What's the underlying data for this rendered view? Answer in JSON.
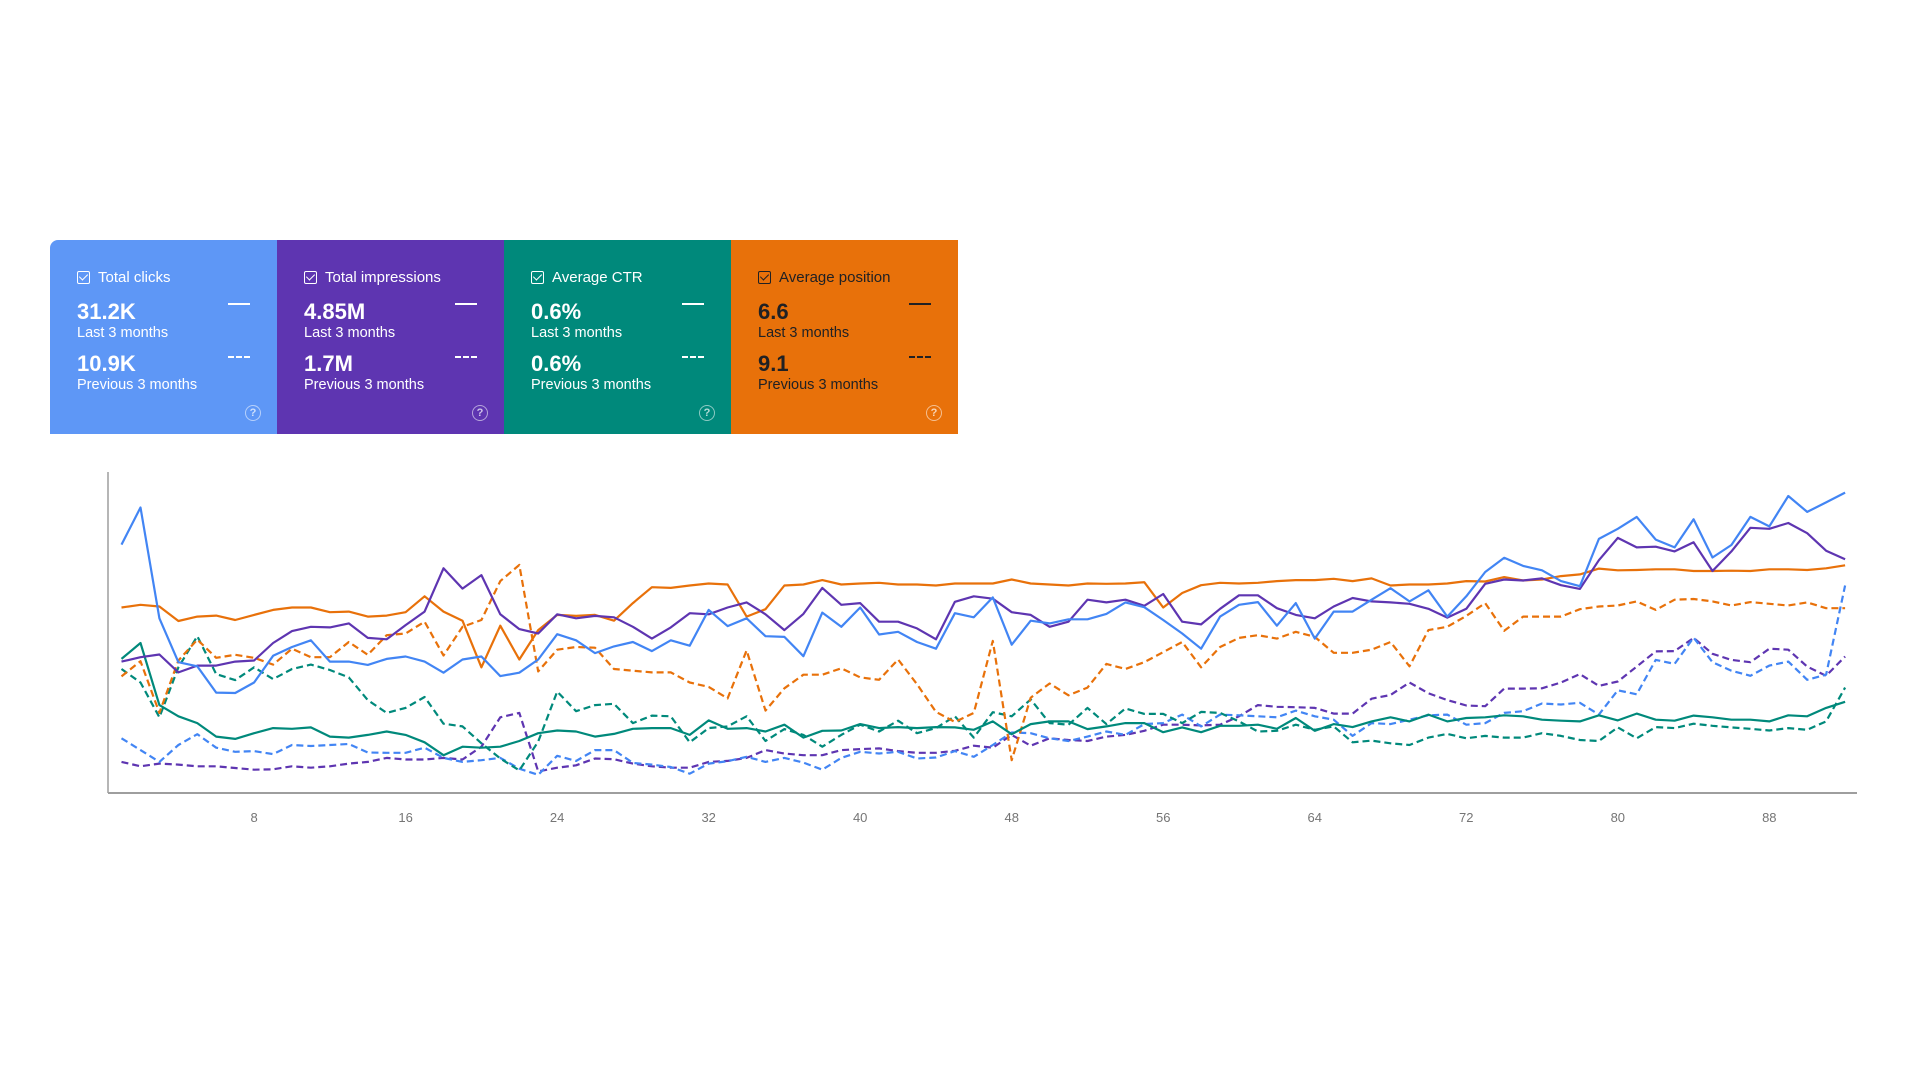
{
  "cards": [
    {
      "title": "Total clicks",
      "current_value": "31.2K",
      "current_label": "Last 3 months",
      "previous_value": "10.9K",
      "previous_label": "Previous 3 months",
      "color": "#5e97f6",
      "checked": true,
      "icon": "help-icon"
    },
    {
      "title": "Total impressions",
      "current_value": "4.85M",
      "current_label": "Last 3 months",
      "previous_value": "1.7M",
      "previous_label": "Previous 3 months",
      "color": "#5e35b1",
      "checked": true,
      "icon": "help-icon"
    },
    {
      "title": "Average CTR",
      "current_value": "0.6%",
      "current_label": "Last 3 months",
      "previous_value": "0.6%",
      "previous_label": "Previous 3 months",
      "color": "#00897b",
      "checked": true,
      "icon": "help-icon"
    },
    {
      "title": "Average position",
      "current_value": "6.6",
      "current_label": "Last 3 months",
      "previous_value": "9.1",
      "previous_label": "Previous 3 months",
      "color": "#e8710a",
      "checked": true,
      "icon": "help-icon"
    }
  ],
  "help_glyph": "?",
  "chart_data": {
    "type": "line",
    "xlim": [
      0,
      93
    ],
    "ylim": [
      0,
      95
    ],
    "y_axis_labels": "none",
    "grid": false,
    "legend": "none",
    "x_ticks": [
      "8",
      "16",
      "24",
      "32",
      "40",
      "48",
      "56",
      "64",
      "72",
      "80",
      "88"
    ],
    "x_tick_values": [
      8,
      16,
      24,
      32,
      40,
      48,
      56,
      64,
      72,
      80,
      88
    ],
    "x_start": 1,
    "series": [
      {
        "metric": "clicks",
        "period": "current",
        "color": "#4285f4",
        "dash": false,
        "values": [
          73.5,
          84.5,
          51.7,
          38.7,
          37.5,
          29.7,
          29.6,
          32.7,
          40.6,
          43.2,
          45.2,
          38.9,
          38.9,
          37.9,
          39.7,
          40.4,
          38.9,
          35.6,
          39.5,
          40.4,
          34.6,
          35.6,
          39.5,
          47,
          45.2,
          41.4,
          43.4,
          44.7,
          42,
          45.2,
          43.6,
          54.2,
          49.4,
          51.7,
          46.4,
          46.2,
          40.5,
          53.4,
          49.2,
          54.9,
          46.9,
          47.7,
          44.7,
          42.7,
          53.2,
          52,
          57.9,
          43.9,
          51,
          50.2,
          51.4,
          51.4,
          53,
          56.4,
          55,
          51.2,
          47.2,
          42.7,
          52.2,
          55.7,
          56.5,
          49.5,
          56.2,
          45.7,
          53.7,
          53.7,
          57.2,
          60.6,
          56.7,
          60,
          52.2,
          58.2,
          65.4,
          69.6,
          67.2,
          65.9,
          62.7,
          61.2,
          75.2,
          78.2,
          81.7,
          75,
          72.7,
          81,
          69.7,
          73.4,
          81.7,
          78.9,
          87.9,
          83.2,
          86,
          88.9
        ]
      },
      {
        "metric": "impressions",
        "period": "current",
        "color": "#5e35b1",
        "dash": false,
        "values": [
          38.9,
          40.2,
          41,
          35.7,
          37.7,
          37.7,
          38.9,
          39.2,
          44.4,
          47.9,
          49.2,
          49,
          50.2,
          45.9,
          45.5,
          49.7,
          53.7,
          66.5,
          60.5,
          64.5,
          52.9,
          48.5,
          47.2,
          52.9,
          51.7,
          52.4,
          52,
          49.2,
          45.7,
          49,
          53.2,
          52.9,
          54.9,
          56.4,
          52.9,
          48.2,
          53,
          60.7,
          55.7,
          56.2,
          50.7,
          50.7,
          48.7,
          45.5,
          56.6,
          58.2,
          57.5,
          53.5,
          52.7,
          49.2,
          50.7,
          57.2,
          56.4,
          57.2,
          55.4,
          58.9,
          50.7,
          49.9,
          54.5,
          58.5,
          58.5,
          54.7,
          52.7,
          51.7,
          55.2,
          57.7,
          56.7,
          56.4,
          56,
          54.5,
          51.9,
          54.5,
          61.9,
          63.2,
          62.9,
          63.5,
          61.5,
          60.4,
          68.9,
          75.5,
          72.7,
          72.9,
          71.5,
          74.2,
          65.7,
          71.5,
          78.5,
          78.2,
          79.9,
          76.9,
          71.7,
          69.2
        ]
      },
      {
        "metric": "position",
        "period": "current",
        "color": "#e8710a",
        "dash": false,
        "values": [
          54.9,
          55.7,
          55.2,
          50.9,
          52.2,
          52.5,
          51.2,
          52.7,
          54.2,
          54.9,
          54.9,
          53.5,
          53.7,
          52.2,
          52.5,
          53.5,
          58.2,
          53.7,
          51,
          37.2,
          49.5,
          39.5,
          48.2,
          52.7,
          52.4,
          52.7,
          51,
          56.2,
          60.9,
          60.7,
          61.4,
          62,
          61.7,
          52.2,
          54.4,
          61.4,
          61.7,
          63,
          61.7,
          62,
          62.2,
          61.7,
          61.7,
          61.4,
          62,
          62,
          62,
          63.2,
          62,
          61.7,
          61.4,
          62,
          61.9,
          62,
          62.4,
          54.9,
          59.2,
          61.5,
          62.2,
          62,
          62.2,
          62.7,
          63,
          63,
          63.4,
          62.7,
          63.5,
          61.4,
          61.7,
          61.7,
          62,
          62.7,
          62.6,
          63.9,
          62.9,
          63.2,
          64.2,
          64.7,
          66.4,
          65.9,
          66,
          66.2,
          66.2,
          65.7,
          65.7,
          65.8,
          65.7,
          66.2,
          66.2,
          66,
          66.5,
          67.4
        ]
      },
      {
        "metric": "ctr",
        "period": "current",
        "color": "#00897b",
        "dash": false,
        "values": [
          39.7,
          44.4,
          26,
          22.7,
          20.7,
          16.7,
          16,
          17.7,
          19.2,
          19,
          19.4,
          16.7,
          16.4,
          17.2,
          18.2,
          17.2,
          15,
          11.2,
          13.7,
          13.4,
          13.7,
          15.4,
          17.7,
          18.5,
          18.2,
          16.7,
          17.5,
          19,
          19.2,
          19.2,
          17.2,
          21.5,
          19,
          19.2,
          18.2,
          20.2,
          16.4,
          18.4,
          18.5,
          20.4,
          19.2,
          19.5,
          19.2,
          19.5,
          19.4,
          18.7,
          21.2,
          17.4,
          20.4,
          21.2,
          21.2,
          18.9,
          19.7,
          20.7,
          20.7,
          18,
          19.4,
          18,
          19.9,
          19.9,
          20.2,
          19,
          22.2,
          18.4,
          20.4,
          19.5,
          21.2,
          22.4,
          21.2,
          23.2,
          21.2,
          22.2,
          22.4,
          23,
          22.7,
          21.7,
          21.4,
          21.2,
          23,
          21.5,
          23.5,
          21.7,
          21.4,
          22.9,
          22.4,
          21.7,
          21.7,
          21.2,
          23,
          22.7,
          25.2,
          27
        ]
      },
      {
        "metric": "position",
        "period": "previous",
        "color": "#e8710a",
        "dash": true,
        "values": [
          34.5,
          39,
          23.7,
          39.2,
          45.4,
          40,
          40.9,
          40,
          38,
          42.7,
          40.2,
          40.2,
          44.7,
          40.9,
          46.7,
          47.2,
          50.7,
          40.7,
          49.2,
          51.2,
          62.7,
          67.5,
          36,
          42.4,
          43.2,
          43,
          36.7,
          36.2,
          35.7,
          35.7,
          32.7,
          31.4,
          28,
          42.2,
          24.4,
          31,
          35,
          35,
          36.9,
          34.2,
          33.5,
          39.5,
          32.2,
          24,
          21,
          23.7,
          45,
          9.7,
          28.2,
          32.4,
          28.9,
          31.2,
          38.2,
          36.7,
          38.7,
          41.7,
          44.7,
          37.2,
          43.2,
          45.9,
          46.7,
          45.7,
          47.7,
          46.2,
          41.5,
          41.5,
          42.4,
          44.7,
          37.5,
          48.2,
          49.2,
          52.4,
          56.2,
          48,
          52.2,
          52.2,
          52.2,
          54.4,
          55.2,
          55.5,
          56.7,
          54.2,
          57.2,
          57.4,
          56.7,
          55.5,
          56.5,
          56,
          55.5,
          56.4,
          54.7,
          54.7
        ]
      },
      {
        "metric": "ctr",
        "period": "previous",
        "color": "#00897b",
        "dash": true,
        "values": [
          36.7,
          32.7,
          22.4,
          37.2,
          46.4,
          35.2,
          33.4,
          37.2,
          33.7,
          36.7,
          38,
          36.4,
          34.2,
          27.5,
          23.7,
          25.2,
          28.4,
          20.5,
          19.7,
          14.7,
          10.2,
          6.7,
          15.2,
          30,
          24.2,
          26,
          26.4,
          20.7,
          22.9,
          22.7,
          15,
          19.2,
          19.7,
          22.7,
          15.4,
          18.9,
          17.2,
          13.7,
          17.2,
          20.2,
          18.2,
          21.4,
          17.7,
          19.2,
          22.7,
          16.4,
          23.9,
          22.7,
          27.7,
          20.7,
          20.2,
          25.2,
          20.4,
          25,
          23.4,
          23.4,
          20.7,
          24,
          23.7,
          21.2,
          18.2,
          18.4,
          20.2,
          18.7,
          19.7,
          15,
          15.5,
          14.7,
          14.2,
          16.4,
          17.5,
          16.2,
          16.9,
          16.4,
          16.4,
          17.7,
          16.9,
          15.7,
          15.4,
          19.4,
          16.2,
          19.5,
          19.2,
          20.5,
          19.9,
          19.4,
          19,
          18.5,
          19.2,
          18.7,
          21.2,
          31.2
        ]
      },
      {
        "metric": "clicks",
        "period": "previous",
        "color": "#4285f4",
        "dash": true,
        "values": [
          16.2,
          12.7,
          9.2,
          14.2,
          17.4,
          13.4,
          12.2,
          12.4,
          11.5,
          14.2,
          13.9,
          14.2,
          14.5,
          12,
          11.9,
          11.9,
          13.4,
          10.4,
          9.2,
          9.7,
          10.4,
          7.2,
          5.4,
          11,
          9.5,
          12.7,
          12.7,
          8.9,
          8.4,
          7.7,
          5.7,
          8.7,
          9.4,
          10.7,
          9.2,
          10.4,
          9,
          6.9,
          10.4,
          12.2,
          11.7,
          12.2,
          10.2,
          10.5,
          12.4,
          10.7,
          14.2,
          17.9,
          17.7,
          16.2,
          15.4,
          16.7,
          18.2,
          17.2,
          20.4,
          20.7,
          23.2,
          19.7,
          23.2,
          23,
          22.7,
          22.4,
          24.4,
          22.7,
          21.7,
          16.9,
          20.7,
          20.4,
          21.7,
          23,
          23.2,
          20.2,
          20.7,
          23.7,
          24.2,
          26.5,
          26.2,
          26.7,
          23.2,
          30.4,
          29.2,
          39.4,
          38.2,
          46,
          38.7,
          36.2,
          34.7,
          37.7,
          38.9,
          33.5,
          35,
          61.4
        ]
      },
      {
        "metric": "impressions",
        "period": "previous",
        "color": "#5e35b1",
        "dash": true,
        "values": [
          9.2,
          7.9,
          8.7,
          8.4,
          7.9,
          7.9,
          7.4,
          6.9,
          7,
          7.9,
          7.5,
          7.9,
          8.7,
          9.2,
          10.4,
          9.9,
          9.9,
          10.4,
          9.9,
          13.7,
          22.4,
          23.7,
          6.4,
          7.5,
          8.2,
          10.2,
          10,
          8.7,
          7.9,
          7.5,
          7.5,
          9.2,
          9.5,
          10.4,
          12.7,
          11.7,
          11.2,
          11.2,
          12.7,
          13,
          13.2,
          12.4,
          11.9,
          11.9,
          12.5,
          14,
          13.4,
          17.2,
          14,
          16.2,
          15.7,
          15.4,
          16.7,
          17.2,
          18.4,
          20.2,
          20.2,
          20,
          20.2,
          22.7,
          26,
          25.5,
          25.4,
          25.2,
          23.5,
          23.5,
          27.9,
          29,
          32.7,
          29.5,
          27.5,
          25.9,
          25.7,
          30.9,
          30.9,
          31,
          32.7,
          35.2,
          31.7,
          33,
          37.4,
          41.9,
          42,
          45.9,
          41.2,
          39.4,
          38.7,
          42.7,
          42.4,
          37.4,
          34.7,
          40.4
        ]
      }
    ]
  }
}
